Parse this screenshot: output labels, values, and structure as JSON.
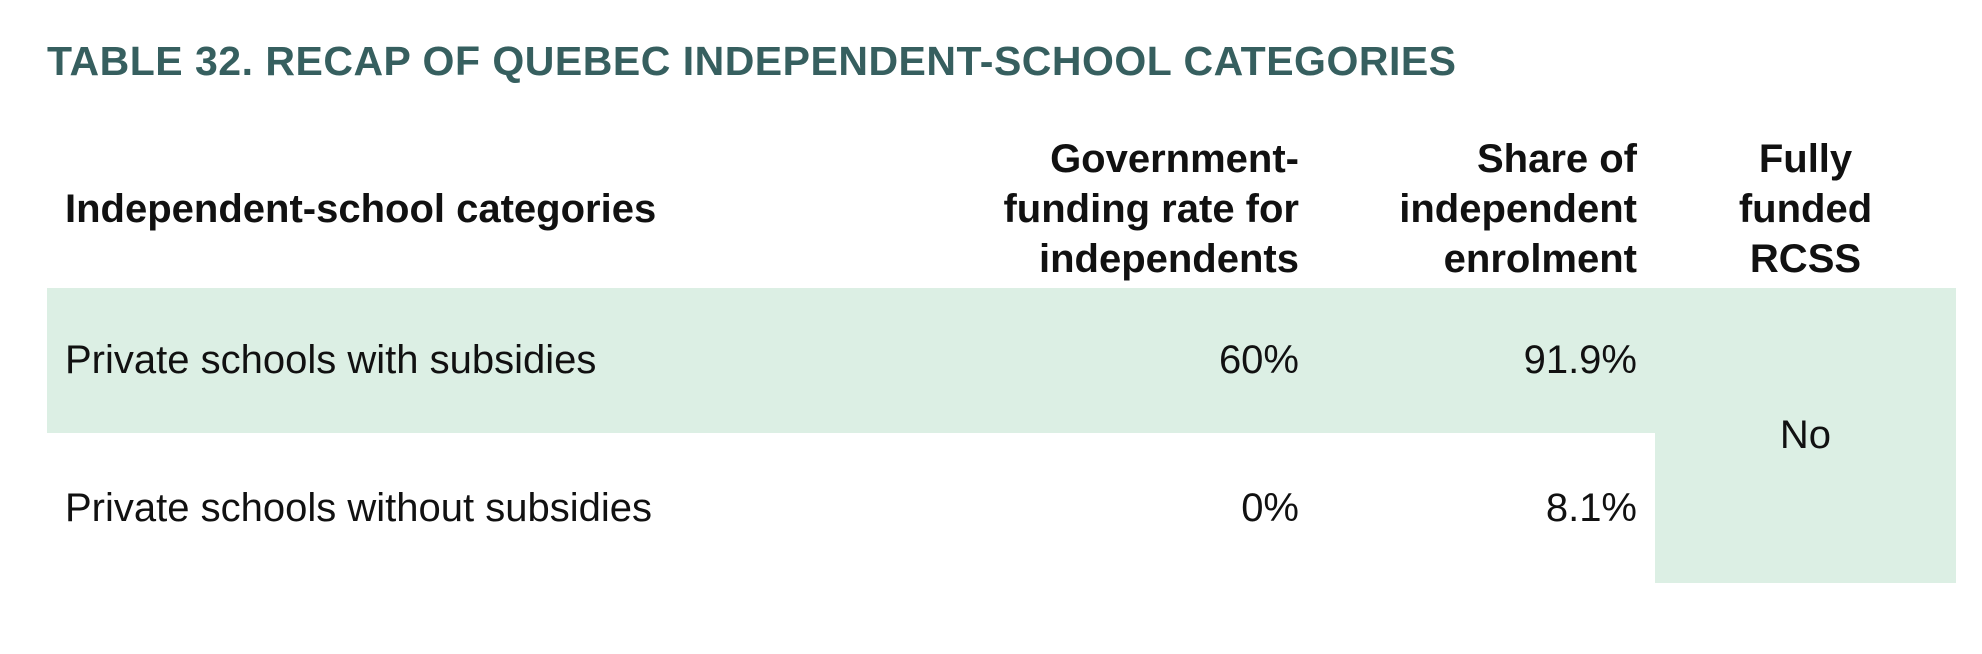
{
  "title": "TABLE 32. RECAP OF QUEBEC INDEPENDENT-SCHOOL CATEGORIES",
  "columns": [
    {
      "line1": "Independent-school categories"
    },
    {
      "line1": "Government-",
      "line2": "funding rate for",
      "line3": "independents"
    },
    {
      "line1": "Share of",
      "line2": "independent",
      "line3": "enrolment"
    },
    {
      "line1": "Fully",
      "line2": "funded",
      "line3": "RCSS"
    }
  ],
  "rows": [
    {
      "category": "Private schools with subsidies",
      "funding_rate": "60%",
      "share": "91.9%"
    },
    {
      "category": "Private schools without subsidies",
      "funding_rate": "0%",
      "share": "8.1%"
    }
  ],
  "fully_funded_rcss": "No",
  "colors": {
    "title": "#365f5f",
    "shade": "#dcefe4",
    "text": "#111111"
  }
}
